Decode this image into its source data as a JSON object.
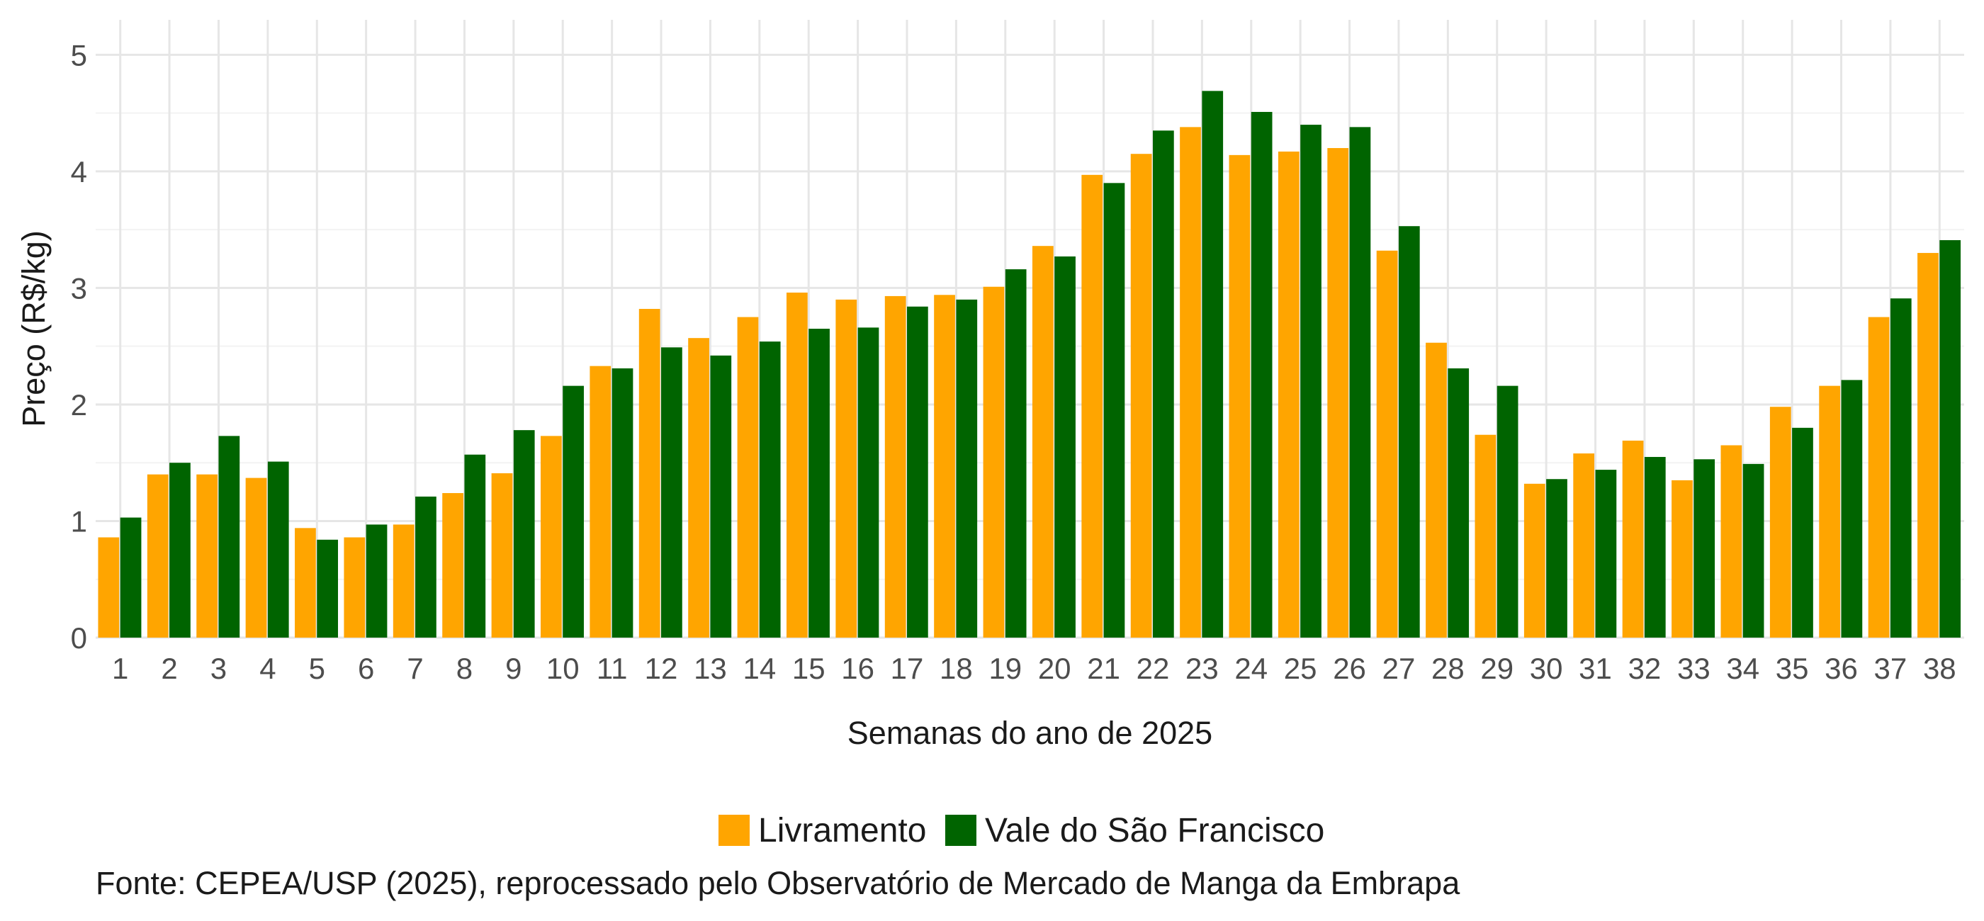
{
  "chart_data": {
    "type": "bar",
    "xlabel": "Semanas do ano de 2025",
    "ylabel": "Preço (R$/kg)",
    "ylim": [
      0,
      5.3
    ],
    "yticks": [
      0,
      1,
      2,
      3,
      4,
      5
    ],
    "grid": true,
    "legend_position": "bottom",
    "categories": [
      "1",
      "2",
      "3",
      "4",
      "5",
      "6",
      "7",
      "8",
      "9",
      "10",
      "11",
      "12",
      "13",
      "14",
      "15",
      "16",
      "17",
      "18",
      "19",
      "20",
      "21",
      "22",
      "23",
      "24",
      "25",
      "26",
      "27",
      "28",
      "29",
      "30",
      "31",
      "32",
      "33",
      "34",
      "35",
      "36",
      "37",
      "38"
    ],
    "series": [
      {
        "name": "Livramento",
        "color": "#FFA500",
        "values": [
          0.86,
          1.4,
          1.4,
          1.37,
          0.94,
          0.86,
          0.97,
          1.24,
          1.41,
          1.73,
          2.33,
          2.82,
          2.57,
          2.75,
          2.96,
          2.9,
          2.93,
          2.94,
          3.01,
          3.36,
          3.97,
          4.15,
          4.38,
          4.14,
          4.17,
          4.2,
          3.32,
          2.53,
          1.74,
          1.32,
          1.58,
          1.69,
          1.35,
          1.65,
          1.98,
          2.16,
          2.75,
          3.3
        ]
      },
      {
        "name": "Vale do São Francisco",
        "color": "#006400",
        "values": [
          1.03,
          1.5,
          1.73,
          1.51,
          0.84,
          0.97,
          1.21,
          1.57,
          1.78,
          2.16,
          2.31,
          2.49,
          2.42,
          2.54,
          2.65,
          2.66,
          2.84,
          2.9,
          3.16,
          3.27,
          3.9,
          4.35,
          4.69,
          4.51,
          4.4,
          4.38,
          3.53,
          2.31,
          2.16,
          1.36,
          1.44,
          1.55,
          1.53,
          1.49,
          1.8,
          2.21,
          2.91,
          3.41
        ]
      }
    ],
    "caption": "Fonte: CEPEA/USP (2025), reprocessado pelo Observatório de Mercado de Manga da Embrapa"
  }
}
